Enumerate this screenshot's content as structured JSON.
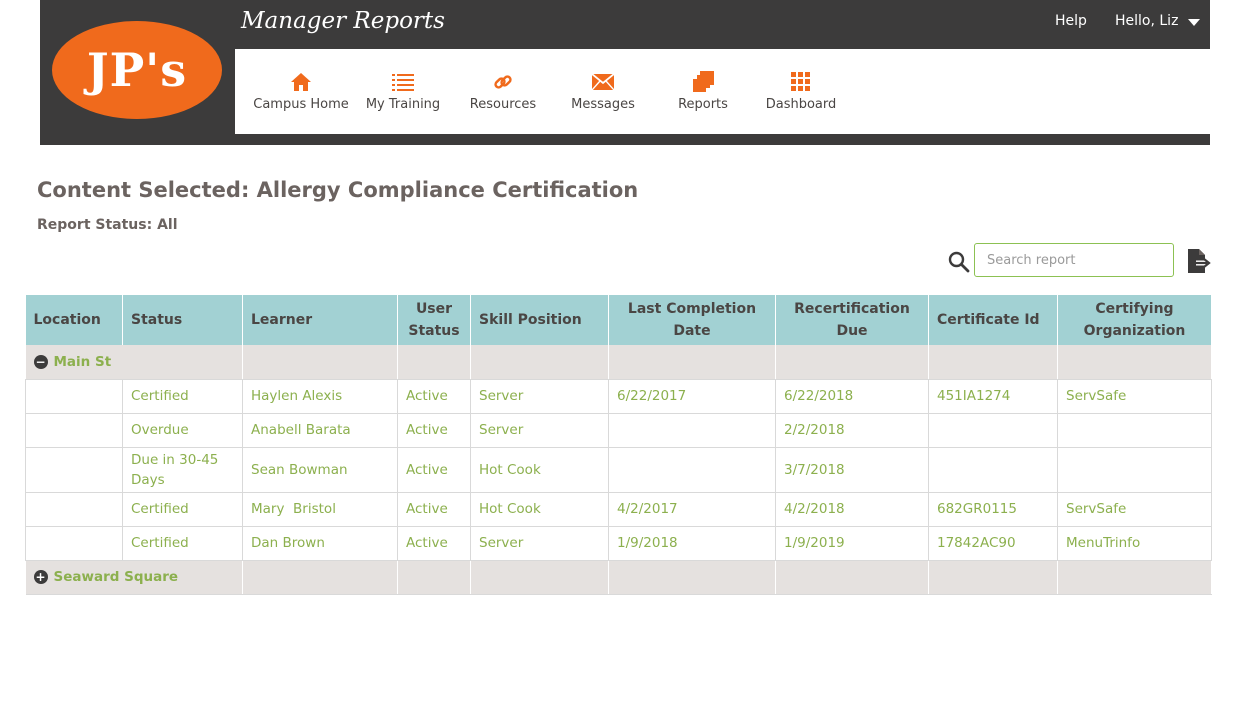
{
  "header": {
    "logo_text": "JP's",
    "app_title": "Manager Reports",
    "help_label": "Help",
    "user_label": "Hello, Liz"
  },
  "nav": [
    {
      "label": "Campus Home",
      "icon": "home-icon"
    },
    {
      "label": "My Training",
      "icon": "list-icon"
    },
    {
      "label": "Resources",
      "icon": "link-icon"
    },
    {
      "label": "Messages",
      "icon": "envelope-icon"
    },
    {
      "label": "Reports",
      "icon": "reports-icon"
    },
    {
      "label": "Dashboard",
      "icon": "grid-icon"
    }
  ],
  "page": {
    "content_title": "Content Selected: Allergy Compliance Certification",
    "report_status": "Report Status: All"
  },
  "search": {
    "placeholder": "Search report",
    "value": ""
  },
  "table": {
    "headers": [
      "Location",
      "Status",
      "Learner",
      "User Status",
      "Skill Position",
      "Last  Completion Date",
      "Recertification Due",
      "Certificate Id",
      "Certifying Organization"
    ],
    "groups": [
      {
        "name": "Main St",
        "expanded": true,
        "rows": [
          [
            "",
            "Certified",
            "Haylen Alexis",
            "Active",
            "Server",
            "6/22/2017",
            "6/22/2018",
            "451IA1274",
            "ServSafe"
          ],
          [
            "",
            "Overdue",
            "Anabell Barata",
            "Active",
            "Server",
            "",
            "2/2/2018",
            "",
            ""
          ],
          [
            "",
            "Due in 30-45 Days",
            "Sean Bowman",
            "Active",
            "Hot Cook",
            "",
            "3/7/2018",
            "",
            ""
          ],
          [
            "",
            "Certified",
            "Mary  Bristol",
            "Active",
            "Hot Cook",
            "4/2/2017",
            "4/2/2018",
            "682GR0115",
            "ServSafe"
          ],
          [
            "",
            "Certified",
            "Dan Brown",
            "Active",
            "Server",
            "1/9/2018",
            "1/9/2019",
            "17842AC90",
            "MenuTrinfo"
          ]
        ]
      },
      {
        "name": "Seaward Square",
        "expanded": false,
        "rows": []
      }
    ]
  },
  "colors": {
    "header_bg": "#3c3b3b",
    "logo_orange": "#f06a1c",
    "accent_green": "#8cb04e",
    "table_header_bg": "#a2d1d3",
    "group_row_bg": "#e5e1df"
  }
}
